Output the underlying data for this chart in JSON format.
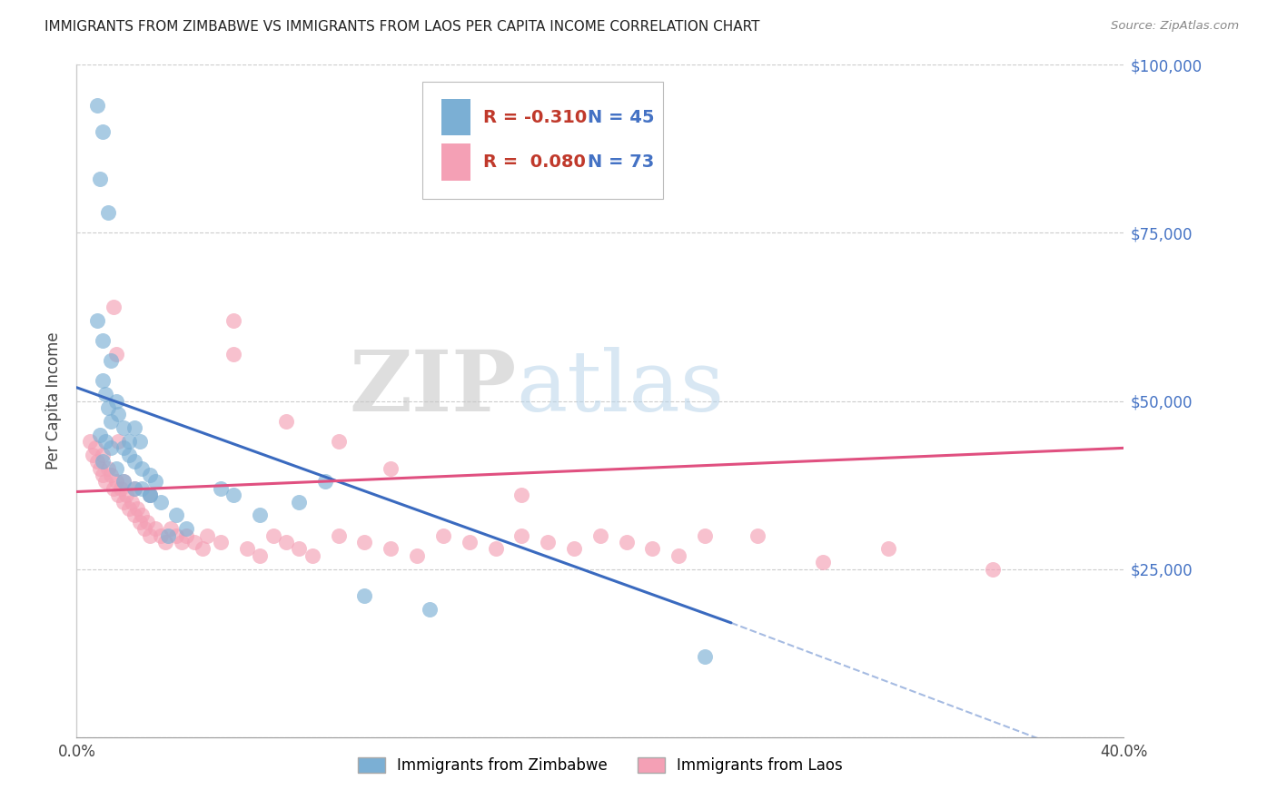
{
  "title": "IMMIGRANTS FROM ZIMBABWE VS IMMIGRANTS FROM LAOS PER CAPITA INCOME CORRELATION CHART",
  "source": "Source: ZipAtlas.com",
  "ylabel": "Per Capita Income",
  "xlim": [
    0.0,
    0.4
  ],
  "ylim": [
    0,
    100000
  ],
  "yticks": [
    0,
    25000,
    50000,
    75000,
    100000
  ],
  "ytick_labels": [
    "",
    "$25,000",
    "$50,000",
    "$75,000",
    "$100,000"
  ],
  "xticks": [
    0.0,
    0.1,
    0.2,
    0.3,
    0.4
  ],
  "xtick_labels": [
    "0.0%",
    "",
    "",
    "",
    "40.0%"
  ],
  "zimbabwe_color": "#7bafd4",
  "laos_color": "#f4a0b5",
  "zimbabwe_line_color": "#3a6abf",
  "laos_line_color": "#e05080",
  "zimbabwe_R": -0.31,
  "zimbabwe_N": 45,
  "laos_R": 0.08,
  "laos_N": 73,
  "legend_label_zimbabwe": "Immigrants from Zimbabwe",
  "legend_label_laos": "Immigrants from Laos",
  "watermark_zip": "ZIP",
  "watermark_atlas": "atlas",
  "axis_label_color": "#4472c4",
  "r_value_color": "#c0392b",
  "background_color": "#ffffff",
  "grid_color": "#cccccc",
  "zimbabwe_x": [
    0.008,
    0.01,
    0.009,
    0.012,
    0.008,
    0.01,
    0.013,
    0.01,
    0.011,
    0.012,
    0.013,
    0.015,
    0.016,
    0.018,
    0.02,
    0.022,
    0.024,
    0.018,
    0.02,
    0.022,
    0.025,
    0.028,
    0.03,
    0.025,
    0.028,
    0.032,
    0.038,
    0.042,
    0.055,
    0.07,
    0.085,
    0.095,
    0.11,
    0.135,
    0.24,
    0.009,
    0.011,
    0.013,
    0.01,
    0.015,
    0.018,
    0.022,
    0.028,
    0.035,
    0.06
  ],
  "zimbabwe_y": [
    94000,
    90000,
    83000,
    78000,
    62000,
    59000,
    56000,
    53000,
    51000,
    49000,
    47000,
    50000,
    48000,
    46000,
    44000,
    46000,
    44000,
    43000,
    42000,
    41000,
    40000,
    39000,
    38000,
    37000,
    36000,
    35000,
    33000,
    31000,
    37000,
    33000,
    35000,
    38000,
    21000,
    19000,
    12000,
    45000,
    44000,
    43000,
    41000,
    40000,
    38000,
    37000,
    36000,
    30000,
    36000
  ],
  "laos_x": [
    0.005,
    0.006,
    0.007,
    0.008,
    0.009,
    0.01,
    0.01,
    0.011,
    0.012,
    0.013,
    0.014,
    0.015,
    0.016,
    0.017,
    0.018,
    0.019,
    0.02,
    0.021,
    0.022,
    0.023,
    0.024,
    0.025,
    0.026,
    0.027,
    0.028,
    0.03,
    0.032,
    0.034,
    0.036,
    0.038,
    0.04,
    0.042,
    0.045,
    0.048,
    0.05,
    0.055,
    0.06,
    0.065,
    0.07,
    0.075,
    0.08,
    0.085,
    0.09,
    0.1,
    0.11,
    0.12,
    0.13,
    0.14,
    0.15,
    0.16,
    0.17,
    0.18,
    0.19,
    0.2,
    0.21,
    0.22,
    0.23,
    0.24,
    0.08,
    0.06,
    0.1,
    0.12,
    0.015,
    0.018,
    0.022,
    0.028,
    0.014,
    0.016,
    0.31,
    0.35,
    0.26,
    0.285,
    0.17
  ],
  "laos_y": [
    44000,
    42000,
    43000,
    41000,
    40000,
    42000,
    39000,
    38000,
    40000,
    39000,
    37000,
    38000,
    36000,
    37000,
    35000,
    36000,
    34000,
    35000,
    33000,
    34000,
    32000,
    33000,
    31000,
    32000,
    30000,
    31000,
    30000,
    29000,
    31000,
    30000,
    29000,
    30000,
    29000,
    28000,
    30000,
    29000,
    62000,
    28000,
    27000,
    30000,
    29000,
    28000,
    27000,
    30000,
    29000,
    28000,
    27000,
    30000,
    29000,
    28000,
    30000,
    29000,
    28000,
    30000,
    29000,
    28000,
    27000,
    30000,
    47000,
    57000,
    44000,
    40000,
    57000,
    38000,
    37000,
    36000,
    64000,
    44000,
    28000,
    25000,
    30000,
    26000,
    36000
  ]
}
